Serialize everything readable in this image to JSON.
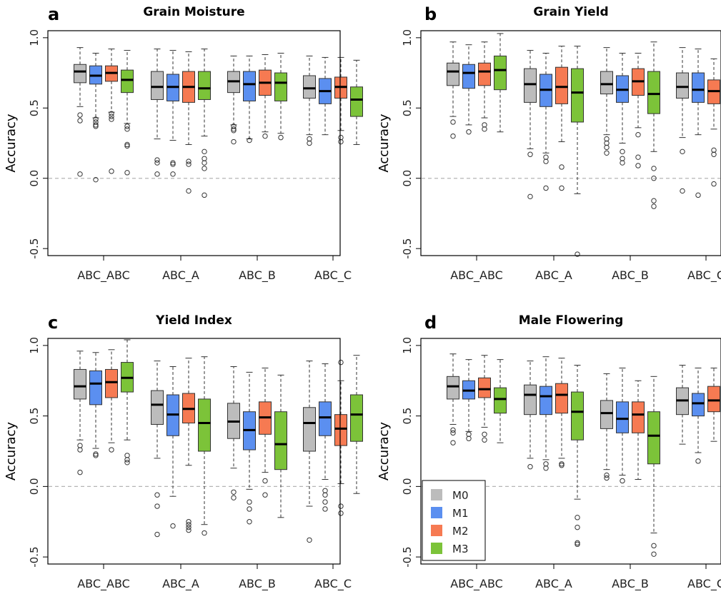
{
  "colors": {
    "M0": "#bcbcbc",
    "M1": "#5b8ff0",
    "M2": "#f67a52",
    "M3": "#7cc339"
  },
  "legend": {
    "items": [
      "M0",
      "M1",
      "M2",
      "M3"
    ],
    "placement": "bottom-left of panel d"
  },
  "chart_data": [
    {
      "letter": "a",
      "type": "box",
      "title": "Grain Moisture",
      "ylabel": "Accuracy",
      "ylim": [
        -0.55,
        1.05
      ],
      "yticks": [
        "-0.5",
        "0.0",
        "0.5",
        "1.0"
      ],
      "ytick_values": [
        -0.5,
        0.0,
        0.5,
        1.0
      ],
      "zero_line": true,
      "categories": [
        "ABC_ABC",
        "ABC_A",
        "ABC_B",
        "ABC_C"
      ],
      "series": [
        {
          "name": "M0",
          "boxes": [
            {
              "wl": 0.51,
              "q1": 0.68,
              "med": 0.76,
              "q3": 0.81,
              "wh": 0.93,
              "out": [
                0.45,
                0.41,
                0.03
              ]
            },
            {
              "wl": 0.28,
              "q1": 0.56,
              "med": 0.65,
              "q3": 0.76,
              "wh": 0.92,
              "out": [
                0.13,
                0.11,
                0.03
              ]
            },
            {
              "wl": 0.38,
              "q1": 0.61,
              "med": 0.69,
              "q3": 0.76,
              "wh": 0.87,
              "out": [
                0.37,
                0.35,
                0.34,
                0.26
              ]
            },
            {
              "wl": 0.31,
              "q1": 0.57,
              "med": 0.64,
              "q3": 0.73,
              "wh": 0.87,
              "out": [
                0.28,
                0.25
              ]
            }
          ]
        },
        {
          "name": "M1",
          "boxes": [
            {
              "wl": 0.43,
              "q1": 0.67,
              "med": 0.73,
              "q3": 0.8,
              "wh": 0.89,
              "out": [
                0.42,
                0.4,
                0.38,
                0.37,
                -0.01
              ]
            },
            {
              "wl": 0.27,
              "q1": 0.55,
              "med": 0.65,
              "q3": 0.74,
              "wh": 0.91,
              "out": [
                0.11,
                0.1,
                0.03
              ]
            },
            {
              "wl": 0.28,
              "q1": 0.55,
              "med": 0.67,
              "q3": 0.76,
              "wh": 0.87,
              "out": [
                0.27
              ]
            },
            {
              "wl": 0.31,
              "q1": 0.53,
              "med": 0.62,
              "q3": 0.71,
              "wh": 0.86,
              "out": []
            }
          ]
        },
        {
          "name": "M2",
          "boxes": [
            {
              "wl": 0.47,
              "q1": 0.69,
              "med": 0.75,
              "q3": 0.8,
              "wh": 0.92,
              "out": [
                0.46,
                0.44,
                0.42,
                0.05
              ]
            },
            {
              "wl": 0.24,
              "q1": 0.54,
              "med": 0.65,
              "q3": 0.76,
              "wh": 0.9,
              "out": [
                0.12,
                0.1,
                -0.09
              ]
            },
            {
              "wl": 0.33,
              "q1": 0.59,
              "med": 0.68,
              "q3": 0.77,
              "wh": 0.88,
              "out": [
                0.3
              ]
            },
            {
              "wl": 0.34,
              "q1": 0.57,
              "med": 0.65,
              "q3": 0.72,
              "wh": 0.86,
              "out": [
                0.29,
                0.26
              ]
            }
          ]
        },
        {
          "name": "M3",
          "boxes": [
            {
              "wl": 0.39,
              "q1": 0.61,
              "med": 0.7,
              "q3": 0.77,
              "wh": 0.91,
              "out": [
                0.37,
                0.35,
                0.24,
                0.23,
                0.04
              ]
            },
            {
              "wl": 0.3,
              "q1": 0.56,
              "med": 0.64,
              "q3": 0.76,
              "wh": 0.92,
              "out": [
                0.19,
                0.14,
                0.11,
                0.07,
                -0.12
              ]
            },
            {
              "wl": 0.32,
              "q1": 0.55,
              "med": 0.68,
              "q3": 0.75,
              "wh": 0.89,
              "out": [
                0.29
              ]
            },
            {
              "wl": 0.24,
              "q1": 0.44,
              "med": 0.56,
              "q3": 0.65,
              "wh": 0.84,
              "out": []
            }
          ]
        }
      ]
    },
    {
      "letter": "b",
      "type": "box",
      "title": "Grain Yield",
      "ylabel": "Accuracy",
      "ylim": [
        -0.55,
        1.05
      ],
      "yticks": [
        "-0.5",
        "0.0",
        "0.5",
        "1.0"
      ],
      "ytick_values": [
        -0.5,
        0.0,
        0.5,
        1.0
      ],
      "zero_line": true,
      "categories": [
        "ABC_ABC",
        "ABC_A",
        "ABC_B",
        "ABC_C"
      ],
      "series": [
        {
          "name": "M0",
          "boxes": [
            {
              "wl": 0.44,
              "q1": 0.66,
              "med": 0.76,
              "q3": 0.82,
              "wh": 0.97,
              "out": [
                0.4,
                0.3
              ]
            },
            {
              "wl": 0.21,
              "q1": 0.54,
              "med": 0.67,
              "q3": 0.78,
              "wh": 0.91,
              "out": [
                0.17,
                -0.13
              ]
            },
            {
              "wl": 0.31,
              "q1": 0.6,
              "med": 0.67,
              "q3": 0.76,
              "wh": 0.93,
              "out": [
                0.28,
                0.25,
                0.22,
                0.18
              ]
            },
            {
              "wl": 0.29,
              "q1": 0.57,
              "med": 0.65,
              "q3": 0.75,
              "wh": 0.93,
              "out": [
                0.19,
                -0.09
              ]
            }
          ]
        },
        {
          "name": "M1",
          "boxes": [
            {
              "wl": 0.38,
              "q1": 0.64,
              "med": 0.75,
              "q3": 0.81,
              "wh": 0.95,
              "out": [
                0.33
              ]
            },
            {
              "wl": 0.18,
              "q1": 0.51,
              "med": 0.63,
              "q3": 0.74,
              "wh": 0.89,
              "out": [
                0.15,
                0.12,
                -0.07
              ]
            },
            {
              "wl": 0.25,
              "q1": 0.54,
              "med": 0.63,
              "q3": 0.73,
              "wh": 0.89,
              "out": [
                0.19,
                0.14,
                0.11
              ]
            },
            {
              "wl": 0.31,
              "q1": 0.54,
              "med": 0.63,
              "q3": 0.75,
              "wh": 0.92,
              "out": [
                -0.12
              ]
            }
          ]
        },
        {
          "name": "M2",
          "boxes": [
            {
              "wl": 0.43,
              "q1": 0.66,
              "med": 0.76,
              "q3": 0.82,
              "wh": 0.97,
              "out": [
                0.38,
                0.35
              ]
            },
            {
              "wl": 0.26,
              "q1": 0.53,
              "med": 0.65,
              "q3": 0.79,
              "wh": 0.94,
              "out": [
                0.08,
                -0.07
              ]
            },
            {
              "wl": 0.36,
              "q1": 0.59,
              "med": 0.69,
              "q3": 0.78,
              "wh": 0.89,
              "out": [
                0.31,
                0.15,
                0.09
              ]
            },
            {
              "wl": 0.35,
              "q1": 0.53,
              "med": 0.62,
              "q3": 0.7,
              "wh": 0.85,
              "out": [
                0.2,
                0.17,
                -0.04
              ]
            }
          ]
        },
        {
          "name": "M3",
          "boxes": [
            {
              "wl": 0.33,
              "q1": 0.63,
              "med": 0.77,
              "q3": 0.87,
              "wh": 1.03,
              "out": []
            },
            {
              "wl": -0.11,
              "q1": 0.4,
              "med": 0.61,
              "q3": 0.78,
              "wh": 0.94,
              "out": [
                -0.54
              ]
            },
            {
              "wl": 0.19,
              "q1": 0.46,
              "med": 0.6,
              "q3": 0.76,
              "wh": 0.97,
              "out": [
                0.07,
                0.0,
                -0.16,
                -0.2
              ]
            },
            {
              "wl": 0.13,
              "q1": 0.46,
              "med": 0.61,
              "q3": 0.75,
              "wh": 0.98,
              "out": [
                0.05,
                0.02,
                -0.24,
                -0.28,
                -0.4,
                -0.45
              ]
            }
          ]
        }
      ]
    },
    {
      "letter": "c",
      "type": "box",
      "title": "Yield Index",
      "ylabel": "Accuracy",
      "ylim": [
        -0.55,
        1.05
      ],
      "yticks": [
        "-0.5",
        "0.0",
        "0.5",
        "1.0"
      ],
      "ytick_values": [
        -0.5,
        0.0,
        0.5,
        1.0
      ],
      "zero_line": true,
      "categories": [
        "ABC_ABC",
        "ABC_A",
        "ABC_B",
        "ABC_C"
      ],
      "series": [
        {
          "name": "M0",
          "boxes": [
            {
              "wl": 0.33,
              "q1": 0.62,
              "med": 0.71,
              "q3": 0.83,
              "wh": 0.96,
              "out": [
                0.29,
                0.26,
                0.1
              ]
            },
            {
              "wl": 0.2,
              "q1": 0.44,
              "med": 0.58,
              "q3": 0.68,
              "wh": 0.89,
              "out": [
                -0.06,
                -0.14,
                -0.34
              ]
            },
            {
              "wl": 0.13,
              "q1": 0.34,
              "med": 0.46,
              "q3": 0.59,
              "wh": 0.85,
              "out": [
                -0.04,
                -0.08
              ]
            },
            {
              "wl": -0.14,
              "q1": 0.25,
              "med": 0.45,
              "q3": 0.56,
              "wh": 0.89,
              "out": [
                -0.38
              ]
            }
          ]
        },
        {
          "name": "M1",
          "boxes": [
            {
              "wl": 0.27,
              "q1": 0.58,
              "med": 0.73,
              "q3": 0.82,
              "wh": 0.95,
              "out": [
                0.23,
                0.22
              ]
            },
            {
              "wl": -0.07,
              "q1": 0.36,
              "med": 0.51,
              "q3": 0.65,
              "wh": 0.85,
              "out": [
                -0.28
              ]
            },
            {
              "wl": -0.02,
              "q1": 0.26,
              "med": 0.4,
              "q3": 0.53,
              "wh": 0.81,
              "out": [
                -0.11,
                -0.16,
                -0.25
              ]
            },
            {
              "wl": 0.05,
              "q1": 0.36,
              "med": 0.49,
              "q3": 0.6,
              "wh": 0.87,
              "out": [
                -0.03,
                -0.06,
                -0.11,
                -0.16
              ]
            }
          ]
        },
        {
          "name": "M2",
          "boxes": [
            {
              "wl": 0.31,
              "q1": 0.63,
              "med": 0.74,
              "q3": 0.83,
              "wh": 0.97,
              "out": [
                0.26
              ]
            },
            {
              "wl": 0.15,
              "q1": 0.45,
              "med": 0.55,
              "q3": 0.66,
              "wh": 0.91,
              "out": [
                -0.25,
                -0.27,
                -0.29,
                -0.31
              ]
            },
            {
              "wl": 0.1,
              "q1": 0.37,
              "med": 0.49,
              "q3": 0.6,
              "wh": 0.84,
              "out": [
                0.04,
                -0.06
              ]
            },
            {
              "wl": 0.02,
              "q1": 0.29,
              "med": 0.41,
              "q3": 0.51,
              "wh": 0.75,
              "out": [
                0.88,
                -0.14,
                -0.19
              ]
            }
          ]
        },
        {
          "name": "M3",
          "boxes": [
            {
              "wl": 0.33,
              "q1": 0.67,
              "med": 0.77,
              "q3": 0.88,
              "wh": 1.04,
              "out": [
                0.22,
                0.19,
                0.17
              ]
            },
            {
              "wl": -0.27,
              "q1": 0.25,
              "med": 0.45,
              "q3": 0.62,
              "wh": 0.92,
              "out": [
                -0.33
              ]
            },
            {
              "wl": -0.22,
              "q1": 0.12,
              "med": 0.3,
              "q3": 0.53,
              "wh": 0.79,
              "out": []
            },
            {
              "wl": -0.05,
              "q1": 0.32,
              "med": 0.51,
              "q3": 0.65,
              "wh": 0.93,
              "out": []
            }
          ]
        }
      ]
    },
    {
      "letter": "d",
      "type": "box",
      "title": "Male Flowering",
      "ylabel": "Accuracy",
      "ylim": [
        -0.55,
        1.05
      ],
      "yticks": [
        "-0.5",
        "0.0",
        "0.5",
        "1.0"
      ],
      "ytick_values": [
        -0.5,
        0.0,
        0.5,
        1.0
      ],
      "zero_line": true,
      "categories": [
        "ABC_ABC",
        "ABC_A",
        "ABC_B",
        "ABC_C"
      ],
      "series": [
        {
          "name": "M0",
          "boxes": [
            {
              "wl": 0.44,
              "q1": 0.62,
              "med": 0.71,
              "q3": 0.78,
              "wh": 0.94,
              "out": [
                0.4,
                0.38,
                0.31
              ]
            },
            {
              "wl": 0.2,
              "q1": 0.51,
              "med": 0.65,
              "q3": 0.72,
              "wh": 0.89,
              "out": [
                0.14
              ]
            },
            {
              "wl": 0.12,
              "q1": 0.41,
              "med": 0.52,
              "q3": 0.61,
              "wh": 0.8,
              "out": [
                0.08,
                0.06
              ]
            },
            {
              "wl": 0.3,
              "q1": 0.51,
              "med": 0.61,
              "q3": 0.7,
              "wh": 0.86,
              "out": []
            }
          ]
        },
        {
          "name": "M1",
          "boxes": [
            {
              "wl": 0.39,
              "q1": 0.62,
              "med": 0.68,
              "q3": 0.75,
              "wh": 0.9,
              "out": [
                0.37,
                0.34
              ]
            },
            {
              "wl": 0.19,
              "q1": 0.51,
              "med": 0.64,
              "q3": 0.71,
              "wh": 0.92,
              "out": [
                0.16,
                0.13
              ]
            },
            {
              "wl": 0.08,
              "q1": 0.38,
              "med": 0.48,
              "q3": 0.6,
              "wh": 0.84,
              "out": [
                0.04
              ]
            },
            {
              "wl": 0.24,
              "q1": 0.5,
              "med": 0.59,
              "q3": 0.66,
              "wh": 0.84,
              "out": [
                0.18
              ]
            }
          ]
        },
        {
          "name": "M2",
          "boxes": [
            {
              "wl": 0.42,
              "q1": 0.63,
              "med": 0.69,
              "q3": 0.77,
              "wh": 0.93,
              "out": [
                0.37,
                0.33
              ]
            },
            {
              "wl": 0.2,
              "q1": 0.52,
              "med": 0.65,
              "q3": 0.73,
              "wh": 0.91,
              "out": [
                0.16,
                0.15
              ]
            },
            {
              "wl": 0.05,
              "q1": 0.38,
              "med": 0.51,
              "q3": 0.6,
              "wh": 0.75,
              "out": []
            },
            {
              "wl": 0.32,
              "q1": 0.53,
              "med": 0.61,
              "q3": 0.71,
              "wh": 0.84,
              "out": []
            }
          ]
        },
        {
          "name": "M3",
          "boxes": [
            {
              "wl": 0.31,
              "q1": 0.52,
              "med": 0.62,
              "q3": 0.7,
              "wh": 0.9,
              "out": []
            },
            {
              "wl": -0.09,
              "q1": 0.33,
              "med": 0.53,
              "q3": 0.67,
              "wh": 0.86,
              "out": [
                -0.22,
                -0.29,
                -0.4,
                -0.41
              ]
            },
            {
              "wl": -0.33,
              "q1": 0.16,
              "med": 0.36,
              "q3": 0.53,
              "wh": 0.78,
              "out": [
                -0.42,
                -0.48
              ]
            },
            {
              "wl": -0.06,
              "q1": 0.32,
              "med": 0.48,
              "q3": 0.6,
              "wh": 0.84,
              "out": [
                -0.08,
                -0.1,
                -0.2,
                -0.26,
                -0.51
              ]
            }
          ]
        }
      ]
    }
  ]
}
